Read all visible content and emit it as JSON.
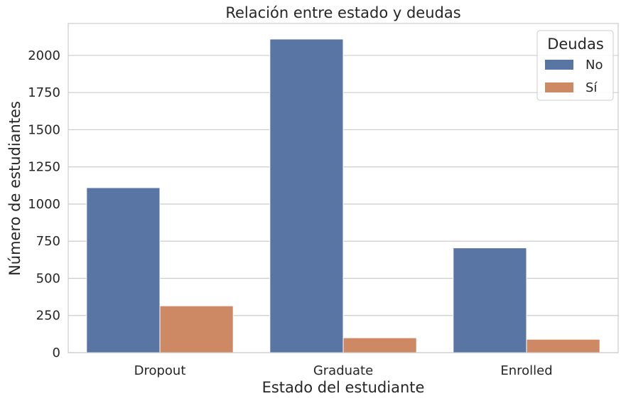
{
  "chart_data": {
    "type": "bar",
    "title": "Relación entre estado y deudas",
    "xlabel": "Estado del estudiante",
    "ylabel": "Número de estudiantes",
    "categories": [
      "Dropout",
      "Graduate",
      "Enrolled"
    ],
    "series": [
      {
        "name": "No",
        "values": [
          1110,
          2110,
          705
        ],
        "color": "#5975a4"
      },
      {
        "name": "Sí",
        "values": [
          315,
          100,
          90
        ],
        "color": "#cc8963"
      }
    ],
    "yticks": [
      "0",
      "250",
      "500",
      "750",
      "1000",
      "1250",
      "1500",
      "1750",
      "2000"
    ],
    "ylim": [
      0,
      2215
    ],
    "grid": true,
    "legend": {
      "title": "Deudas",
      "placement": "top-right"
    }
  }
}
